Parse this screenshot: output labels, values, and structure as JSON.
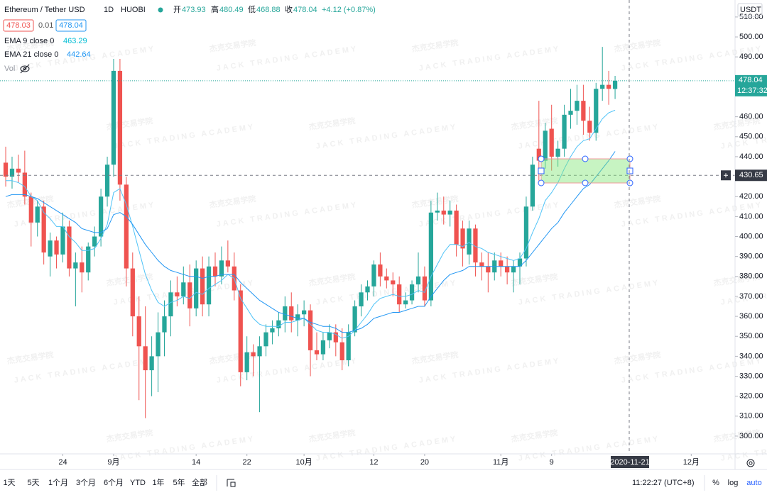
{
  "ui": {
    "symbol": "Ethereum / Tether USD",
    "interval": "1D",
    "exchange": "HUOBI",
    "ohlc_labels": [
      "开",
      "高",
      "低",
      "收"
    ],
    "change": "+4.12 (+0.87%)",
    "sell_price": 478.03,
    "spread": 0.01,
    "buy_price": 478.04,
    "volume_label": "Vol",
    "currency": "USDT",
    "countdown": "12:37:32",
    "crosshair_date": "2020-11-21",
    "crosshair_price": 430.65,
    "ranges": [
      "1天",
      "5天",
      "1个月",
      "3个月",
      "6个月",
      "YTD",
      "1年",
      "5年",
      "全部"
    ],
    "clock": "11:22:27 (UTC+8)",
    "scale_options": [
      "%",
      "log",
      "auto"
    ],
    "watermark_cn": "杰克交易学院",
    "watermark_en": "JACK TRADING ACADEMY"
  },
  "chart_data": {
    "type": "candlestick",
    "up_color": "#26a69a",
    "down_color": "#ef5350",
    "open": [
      437,
      430,
      434,
      432,
      420,
      407,
      415,
      390,
      398,
      391,
      405,
      384,
      387,
      382,
      395,
      400,
      420,
      436,
      483,
      426,
      384,
      360,
      345,
      333,
      340,
      352,
      360,
      372,
      370,
      377,
      364,
      384,
      366,
      385,
      380,
      388,
      385,
      373,
      332,
      342,
      340,
      345,
      352,
      354,
      358,
      365,
      358,
      361,
      363,
      343,
      341,
      348,
      352,
      347,
      338,
      352,
      365,
      372,
      375,
      386,
      380,
      378,
      376,
      366,
      368,
      376,
      380,
      368,
      412,
      413,
      411,
      413,
      404,
      391,
      404,
      387,
      385,
      382,
      388,
      385,
      382,
      385,
      389,
      415,
      444,
      438,
      454,
      440,
      444,
      461,
      463,
      468,
      458,
      452,
      474,
      476,
      473.93
    ],
    "high": [
      445,
      440,
      441,
      443,
      422,
      418,
      418,
      402,
      400,
      412,
      408,
      392,
      395,
      397,
      405,
      424,
      440,
      489,
      489,
      430,
      392,
      370,
      365,
      350,
      362,
      368,
      378,
      380,
      385,
      386,
      388,
      390,
      390,
      392,
      395,
      398,
      392,
      376,
      350,
      346,
      350,
      356,
      358,
      362,
      370,
      372,
      366,
      368,
      366,
      352,
      352,
      356,
      356,
      354,
      356,
      368,
      376,
      378,
      388,
      392,
      384,
      382,
      380,
      372,
      378,
      392,
      385,
      418,
      422,
      420,
      418,
      416,
      408,
      408,
      406,
      392,
      392,
      392,
      392,
      390,
      388,
      392,
      420,
      440,
      468,
      457,
      466,
      448,
      466,
      474,
      476,
      476,
      465,
      477,
      495,
      483,
      480.49
    ],
    "low": [
      425,
      424,
      427,
      416,
      395,
      400,
      386,
      380,
      384,
      387,
      380,
      365,
      372,
      378,
      390,
      395,
      415,
      430,
      418,
      375,
      350,
      318,
      309,
      320,
      322,
      340,
      350,
      365,
      366,
      355,
      360,
      360,
      360,
      375,
      376,
      382,
      368,
      325,
      328,
      330,
      312,
      340,
      346,
      350,
      352,
      352,
      350,
      355,
      330,
      338,
      338,
      344,
      340,
      333,
      335,
      350,
      360,
      368,
      370,
      375,
      374,
      370,
      362,
      364,
      366,
      372,
      365,
      365,
      408,
      406,
      405,
      390,
      385,
      386,
      380,
      378,
      372,
      378,
      380,
      376,
      372,
      376,
      385,
      413,
      428,
      434,
      433,
      435,
      440,
      454,
      456,
      451,
      448,
      448,
      468,
      466,
      468.88
    ],
    "close": [
      430,
      434,
      432,
      420,
      407,
      415,
      392,
      398,
      391,
      405,
      384,
      387,
      382,
      395,
      400,
      420,
      436,
      483,
      426,
      384,
      360,
      345,
      333,
      340,
      352,
      360,
      372,
      370,
      377,
      364,
      384,
      366,
      385,
      380,
      388,
      385,
      373,
      332,
      342,
      340,
      345,
      352,
      354,
      358,
      365,
      358,
      361,
      363,
      343,
      341,
      348,
      352,
      347,
      338,
      352,
      365,
      372,
      375,
      386,
      380,
      378,
      376,
      366,
      368,
      376,
      380,
      368,
      412,
      413,
      411,
      413,
      396,
      394,
      404,
      387,
      385,
      382,
      388,
      385,
      382,
      385,
      389,
      415,
      436,
      438,
      453,
      440,
      444,
      461,
      463,
      468,
      458,
      452,
      474,
      476,
      474,
      478.04
    ],
    "series": [
      {
        "name": "EMA 9 close 0",
        "color": "#4fc3f7",
        "values": [
          428,
          428,
          427,
          425,
          420,
          418,
          412,
          409,
          405,
          405,
          400,
          397,
          393,
          393,
          394,
          399,
          406,
          422,
          424,
          416,
          405,
          393,
          381,
          373,
          367,
          365,
          367,
          368,
          370,
          369,
          372,
          371,
          374,
          376,
          378,
          381,
          379,
          369,
          364,
          359,
          356,
          355,
          355,
          355,
          357,
          357,
          358,
          359,
          356,
          353,
          352,
          352,
          351,
          349,
          350,
          353,
          357,
          361,
          366,
          369,
          370,
          371,
          370,
          370,
          371,
          373,
          372,
          380,
          386,
          392,
          396,
          396,
          395,
          397,
          395,
          394,
          392,
          391,
          390,
          389,
          388,
          389,
          394,
          402,
          409,
          418,
          422,
          427,
          434,
          440,
          445,
          448,
          449,
          454,
          459,
          462,
          463.29
        ]
      },
      {
        "name": "EMA 21 close 0",
        "color": "#2196f3",
        "values": [
          420,
          421,
          421,
          421,
          420,
          419,
          417,
          415,
          413,
          411,
          409,
          407,
          404,
          403,
          402,
          402,
          404,
          411,
          412,
          410,
          406,
          401,
          396,
          392,
          388,
          385,
          383,
          382,
          381,
          380,
          380,
          379,
          380,
          380,
          381,
          381,
          381,
          377,
          374,
          371,
          368,
          366,
          364,
          362,
          361,
          360,
          359,
          359,
          357,
          356,
          355,
          355,
          354,
          352,
          352,
          353,
          354,
          356,
          359,
          360,
          361,
          362,
          362,
          363,
          364,
          365,
          365,
          370,
          374,
          378,
          381,
          382,
          383,
          385,
          385,
          385,
          385,
          385,
          385,
          385,
          385,
          385,
          388,
          392,
          396,
          400,
          404,
          407,
          412,
          416,
          420,
          424,
          426,
          430,
          434,
          438,
          442.64
        ]
      }
    ],
    "xlim": [
      -0.9,
      114.9
    ],
    "xticks": [
      {
        "value": 9,
        "label": "24"
      },
      {
        "value": 17,
        "label": "9月"
      },
      {
        "value": 30,
        "label": "14"
      },
      {
        "value": 38,
        "label": "22"
      },
      {
        "value": 47,
        "label": "10月"
      },
      {
        "value": 58,
        "label": "12"
      },
      {
        "value": 66,
        "label": "20"
      },
      {
        "value": 78,
        "label": "11月"
      },
      {
        "value": 86,
        "label": "9"
      },
      {
        "value": 108,
        "label": "12月"
      }
    ],
    "ylim": [
      291.1,
      518.5
    ],
    "yticks": [
      {
        "value": 300,
        "label": "300.00"
      },
      {
        "value": 310,
        "label": "310.00"
      },
      {
        "value": 320,
        "label": "320.00"
      },
      {
        "value": 330,
        "label": "330.00"
      },
      {
        "value": 340,
        "label": "340.00"
      },
      {
        "value": 350,
        "label": "350.00"
      },
      {
        "value": 360,
        "label": "360.00"
      },
      {
        "value": 370,
        "label": "370.00"
      },
      {
        "value": 380,
        "label": "380.00"
      },
      {
        "value": 390,
        "label": "390.00"
      },
      {
        "value": 400,
        "label": "400.00"
      },
      {
        "value": 410,
        "label": "410.00"
      },
      {
        "value": 420,
        "label": "420.00"
      },
      {
        "value": 440,
        "label": "440.00"
      },
      {
        "value": 450,
        "label": "450.00"
      },
      {
        "value": 460,
        "label": "460.00"
      },
      {
        "value": 490,
        "label": "490.00"
      },
      {
        "value": 500,
        "label": "500.00"
      },
      {
        "value": 510,
        "label": "510.00"
      }
    ],
    "grid": false,
    "log_scale": false
  }
}
